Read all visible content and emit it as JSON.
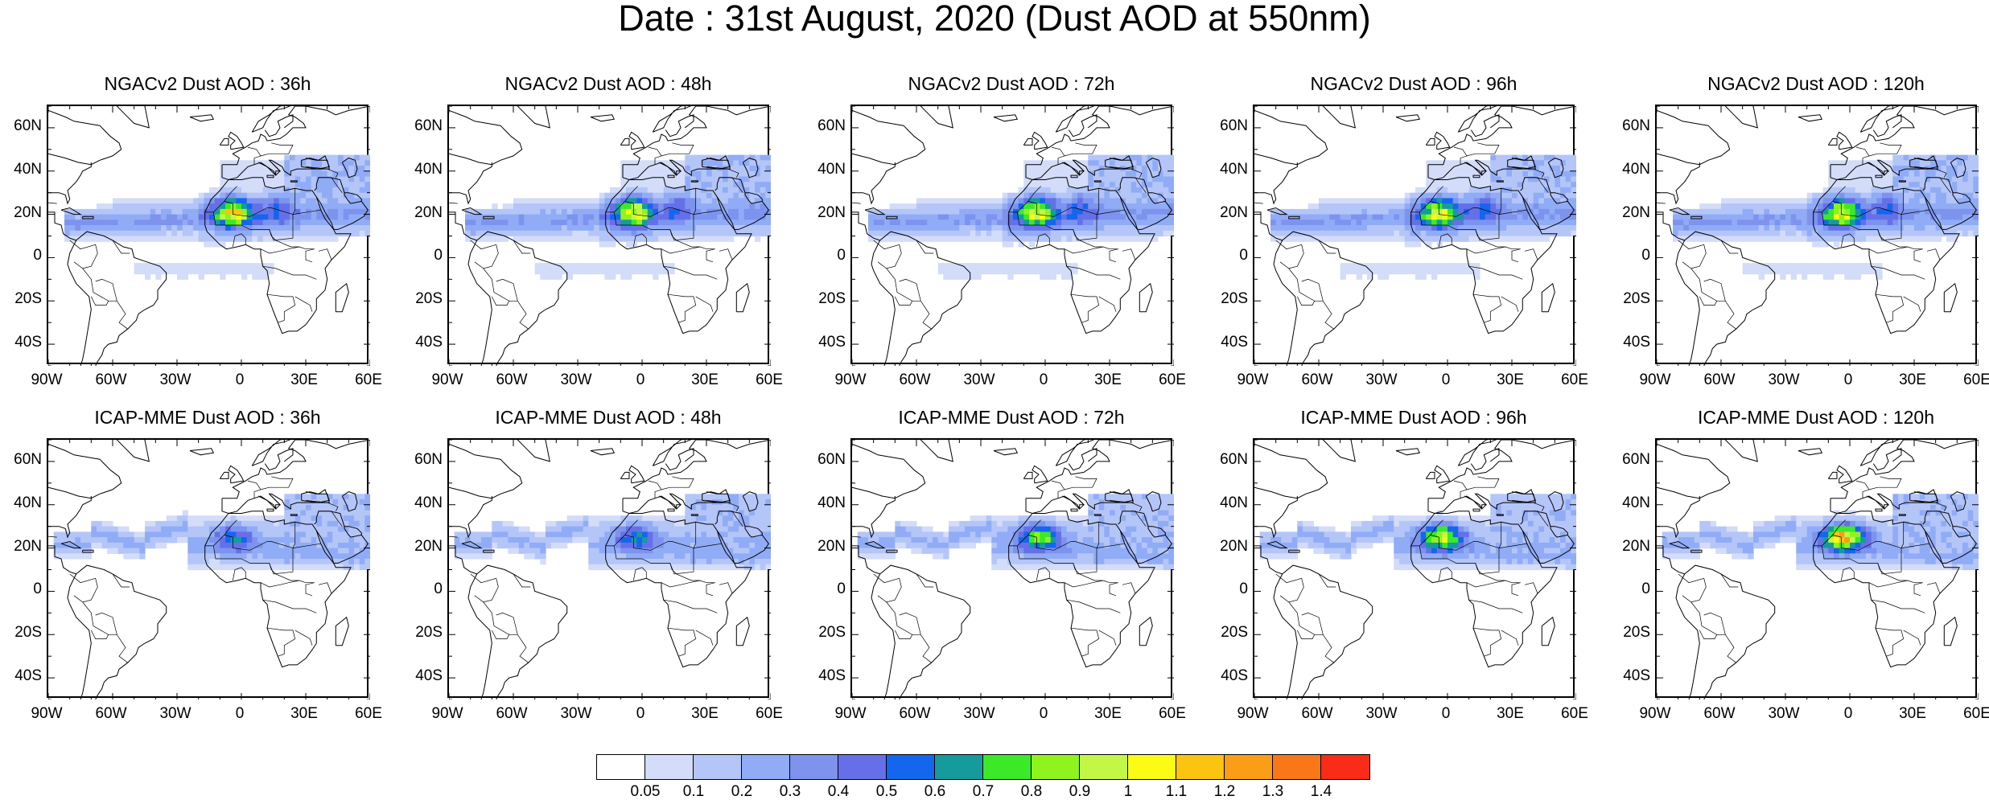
{
  "title": "Date : 31st August, 2020 (Dust AOD at 550nm)",
  "panels": [
    {
      "title": "NGACv2 Dust AOD : 36h",
      "model": "NGACv2",
      "lead": "36h",
      "intensity": 1.0,
      "band": "ngac"
    },
    {
      "title": "NGACv2 Dust AOD : 48h",
      "model": "NGACv2",
      "lead": "48h",
      "intensity": 1.0,
      "band": "ngac"
    },
    {
      "title": "NGACv2 Dust AOD : 72h",
      "model": "NGACv2",
      "lead": "72h",
      "intensity": 0.95,
      "band": "ngac"
    },
    {
      "title": "NGACv2 Dust AOD : 96h",
      "model": "NGACv2",
      "lead": "96h",
      "intensity": 0.95,
      "band": "ngac"
    },
    {
      "title": "NGACv2 Dust AOD : 120h",
      "model": "NGACv2",
      "lead": "120h",
      "intensity": 0.9,
      "band": "ngac"
    },
    {
      "title": "ICAP-MME Dust AOD : 36h",
      "model": "ICAP-MME",
      "lead": "36h",
      "intensity": 0.7,
      "band": "icap"
    },
    {
      "title": "ICAP-MME Dust AOD : 48h",
      "model": "ICAP-MME",
      "lead": "48h",
      "intensity": 0.75,
      "band": "icap"
    },
    {
      "title": "ICAP-MME Dust AOD : 72h",
      "model": "ICAP-MME",
      "lead": "72h",
      "intensity": 0.9,
      "band": "icap"
    },
    {
      "title": "ICAP-MME Dust AOD : 96h",
      "model": "ICAP-MME",
      "lead": "96h",
      "intensity": 1.0,
      "band": "icap"
    },
    {
      "title": "ICAP-MME Dust AOD : 120h",
      "model": "ICAP-MME",
      "lead": "120h",
      "intensity": 1.1,
      "band": "icap"
    }
  ],
  "lat_labels": [
    "60N",
    "40N",
    "20N",
    "0",
    "20S",
    "40S"
  ],
  "lon_labels": [
    "90W",
    "60W",
    "30W",
    "0",
    "30E",
    "60E"
  ],
  "colorbar": {
    "colors": [
      "#ffffff",
      "#d3dcf8",
      "#b4c5f8",
      "#91acf6",
      "#7d93ee",
      "#6570e8",
      "#1466ee",
      "#159b9c",
      "#3ce928",
      "#8ff41e",
      "#c2f746",
      "#fbfb15",
      "#fcc411",
      "#fb9d17",
      "#f97718",
      "#fb2c17"
    ],
    "labels": [
      "0.05",
      "0.1",
      "0.2",
      "0.3",
      "0.4",
      "0.5",
      "0.6",
      "0.7",
      "0.8",
      "0.9",
      "1",
      "1.1",
      "1.2",
      "1.3",
      "1.4"
    ]
  },
  "map_extent": {
    "lon_min": -90,
    "lon_max": 60,
    "lat_min": -50,
    "lat_max": 70
  }
}
